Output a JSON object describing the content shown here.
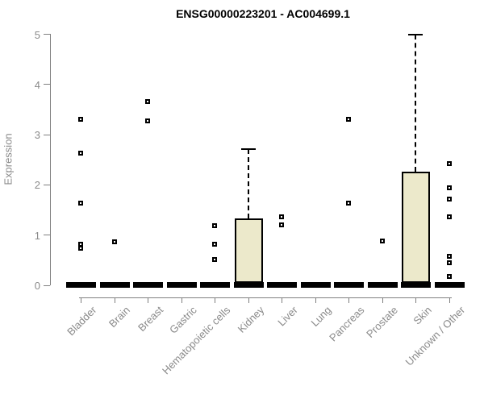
{
  "chart_data": {
    "type": "box",
    "title": "ENSG00000223201 - AC004699.1",
    "ylabel": "Expression",
    "xlabel": "",
    "ylim": [
      0,
      5
    ],
    "yticks": [
      0,
      1,
      2,
      3,
      4,
      5
    ],
    "grid": false,
    "legend": false,
    "categories": [
      "Bladder",
      "Brain",
      "Breast",
      "Gastric",
      "Hematopoietic cells",
      "Kidney",
      "Liver",
      "Lung",
      "Pancreas",
      "Prostate",
      "Skin",
      "Unknown / Other"
    ],
    "boxes": [
      {
        "category": "Bladder",
        "q1": 0,
        "median": 0,
        "q3": 0,
        "whisker_low": 0,
        "whisker_high": 0,
        "outliers": [
          3.31,
          2.63,
          1.64,
          0.82,
          0.74
        ]
      },
      {
        "category": "Brain",
        "q1": 0,
        "median": 0,
        "q3": 0,
        "whisker_low": 0,
        "whisker_high": 0,
        "outliers": [
          0.87
        ]
      },
      {
        "category": "Breast",
        "q1": 0,
        "median": 0,
        "q3": 0,
        "whisker_low": 0,
        "whisker_high": 0,
        "outliers": [
          3.66,
          3.27
        ]
      },
      {
        "category": "Gastric",
        "q1": 0,
        "median": 0,
        "q3": 0,
        "whisker_low": 0,
        "whisker_high": 0,
        "outliers": []
      },
      {
        "category": "Hematopoietic cells",
        "q1": 0,
        "median": 0,
        "q3": 0,
        "whisker_low": 0,
        "whisker_high": 0,
        "outliers": [
          1.19,
          0.82,
          0.51
        ]
      },
      {
        "category": "Kidney",
        "q1": 0,
        "median": 0,
        "q3": 1.33,
        "whisker_low": 0,
        "whisker_high": 2.71,
        "outliers": []
      },
      {
        "category": "Liver",
        "q1": 0,
        "median": 0,
        "q3": 0,
        "whisker_low": 0,
        "whisker_high": 0,
        "outliers": [
          1.36,
          1.2
        ]
      },
      {
        "category": "Lung",
        "q1": 0,
        "median": 0,
        "q3": 0,
        "whisker_low": 0,
        "whisker_high": 0,
        "outliers": []
      },
      {
        "category": "Pancreas",
        "q1": 0,
        "median": 0,
        "q3": 0,
        "whisker_low": 0,
        "whisker_high": 0,
        "outliers": [
          3.31,
          1.64
        ]
      },
      {
        "category": "Prostate",
        "q1": 0,
        "median": 0,
        "q3": 0,
        "whisker_low": 0,
        "whisker_high": 0,
        "outliers": [
          0.88
        ]
      },
      {
        "category": "Skin",
        "q1": 0,
        "median": 0,
        "q3": 2.26,
        "whisker_low": 0,
        "whisker_high": 5.0,
        "outliers": []
      },
      {
        "category": "Unknown / Other",
        "q1": 0,
        "median": 0,
        "q3": 0,
        "whisker_low": 0,
        "whisker_high": 0,
        "outliers": [
          2.42,
          1.94,
          1.71,
          1.36,
          0.58,
          0.45,
          0.18
        ]
      }
    ],
    "colors": {
      "box_fill": "#ece9cb",
      "box_border": "#000000",
      "median": "#000000",
      "outlier": "#000000",
      "axis": "#808080",
      "tick_label": "#8a8a8a",
      "title": "#000000",
      "background": "#ffffff"
    }
  }
}
